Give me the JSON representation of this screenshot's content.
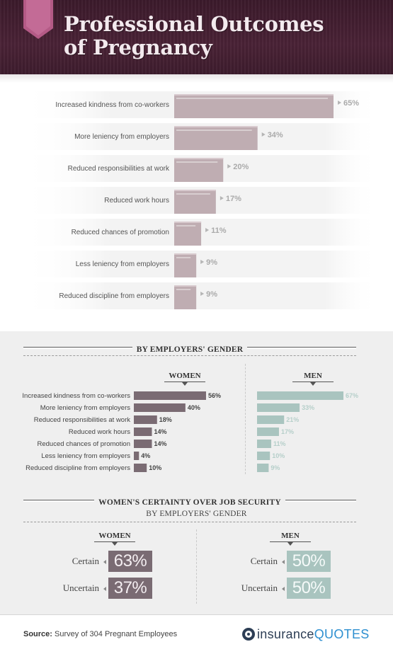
{
  "header": {
    "title_line1": "Professional Outcomes",
    "title_line2": "of Pregnancy"
  },
  "colors": {
    "header_bg": "#43203a",
    "overall_bar": "#bfadb2",
    "women_bar": "#7a6b73",
    "men_bar": "#a9c4bf"
  },
  "chart_data": [
    {
      "type": "bar",
      "orientation": "horizontal",
      "categories": [
        "Increased kindness from co-workers",
        "More leniency from employers",
        "Reduced responsibilities at work",
        "Reduced work hours",
        "Reduced chances of promotion",
        "Less leniency from employers",
        "Reduced discipline from employers"
      ],
      "values": [
        65,
        34,
        20,
        17,
        11,
        9,
        9
      ],
      "labels": [
        "65%",
        "34%",
        "20%",
        "17%",
        "11%",
        "9%",
        "9%"
      ],
      "unit": "%"
    },
    {
      "type": "bar",
      "orientation": "horizontal",
      "title": "BY EMPLOYERS' GENDER",
      "categories": [
        "Increased kindness from co-workers",
        "More leniency from employers",
        "Reduced responsibilities at work",
        "Reduced work hours",
        "Reduced chances of promotion",
        "Less leniency from employers",
        "Reduced discipline from employers"
      ],
      "series": [
        {
          "name": "WOMEN",
          "values": [
            56,
            40,
            18,
            14,
            14,
            4,
            10
          ],
          "labels": [
            "56%",
            "40%",
            "18%",
            "14%",
            "14%",
            "4%",
            "10%"
          ]
        },
        {
          "name": "MEN",
          "values": [
            67,
            33,
            21,
            17,
            11,
            10,
            9
          ],
          "labels": [
            "67%",
            "33%",
            "21%",
            "17%",
            "11%",
            "10%",
            "9%"
          ]
        }
      ],
      "unit": "%"
    },
    {
      "type": "table",
      "title": "WOMEN'S CERTAINTY OVER JOB SECURITY",
      "subtitle": "BY EMPLOYERS' GENDER",
      "columns": [
        "WOMEN",
        "MEN"
      ],
      "rows": [
        {
          "label": "Certain",
          "values": [
            "63%",
            "50%"
          ]
        },
        {
          "label": "Uncertain",
          "values": [
            "37%",
            "50%"
          ]
        }
      ]
    }
  ],
  "footer": {
    "source_label": "Source:",
    "source_text": "Survey of 304 Pregnant Employees",
    "logo_word1": "insurance",
    "logo_word2": "QUOTES"
  }
}
